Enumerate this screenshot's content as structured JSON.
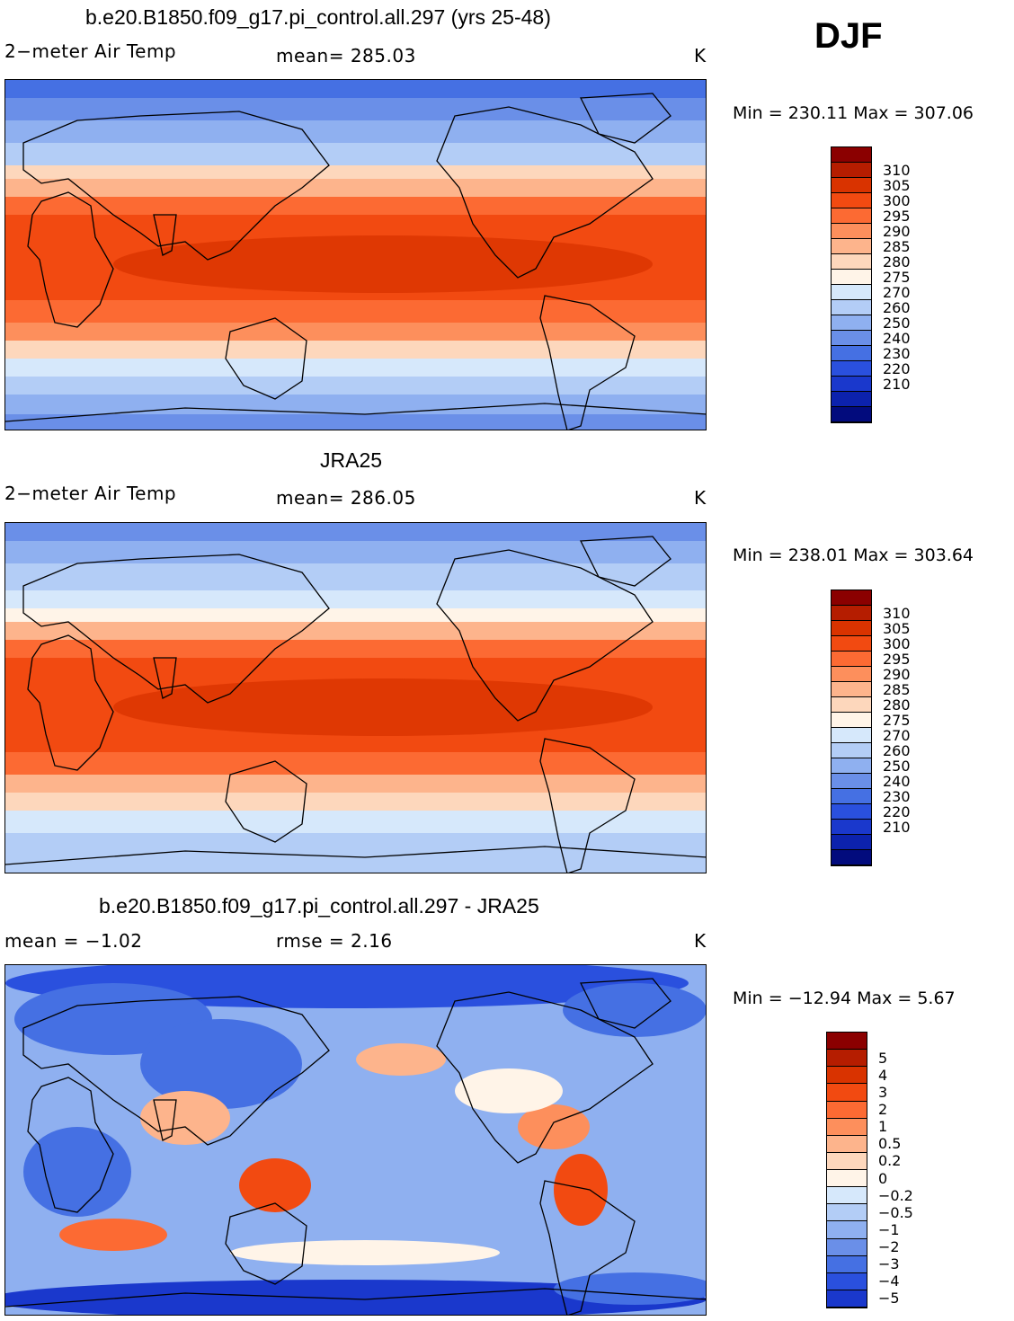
{
  "season": "DJF",
  "panels": [
    {
      "title": "b.e20.B1850.f09_g17.pi_control.all.297 (yrs 25-48)",
      "left_text": "2−meter Air Temp",
      "center_text": "mean=  285.03",
      "units": "K",
      "minmax": "Min  =  230.11  Max  =  307.06",
      "field": "model"
    },
    {
      "title": "JRA25",
      "left_text": "2−meter Air Temp",
      "center_text": "mean=  286.05",
      "units": "K",
      "minmax": "Min  =  238.01  Max  =  303.64",
      "field": "obs"
    },
    {
      "title": "b.e20.B1850.f09_g17.pi_control.all.297 - JRA25",
      "left_text": "mean =    −1.02",
      "center_text": "rmse =     2.16",
      "units": "K",
      "minmax": "Min  =  −12.94  Max  =     5.67",
      "field": "diff"
    }
  ],
  "colorbars": {
    "temperature": {
      "labels": [
        "310",
        "305",
        "300",
        "295",
        "290",
        "285",
        "280",
        "275",
        "270",
        "260",
        "250",
        "240",
        "230",
        "220",
        "210"
      ],
      "colors": [
        "#8b0000",
        "#b51d00",
        "#d93300",
        "#f24a11",
        "#fc6a33",
        "#fd8f5c",
        "#fdb48c",
        "#fdd7bc",
        "#fff4e8",
        "#d6e8fb",
        "#b3cdf6",
        "#8fb0f0",
        "#6a8fe8",
        "#4570e3",
        "#2a50de",
        "#1a38cc",
        "#0c22ad",
        "#020b7d"
      ]
    },
    "difference": {
      "labels": [
        "5",
        "4",
        "3",
        "2",
        "1",
        "0.5",
        "0.2",
        "0",
        "−0.2",
        "−0.5",
        "−1",
        "−2",
        "−3",
        "−4",
        "−5"
      ],
      "colors": [
        "#8b0000",
        "#b51d00",
        "#d93300",
        "#f24a11",
        "#fc6a33",
        "#fd8f5c",
        "#fdb48c",
        "#fdd7bc",
        "#fff4e8",
        "#d6e8fb",
        "#b3cdf6",
        "#8fb0f0",
        "#6a8fe8",
        "#4570e3",
        "#2a50de",
        "#1a38cc"
      ]
    }
  }
}
